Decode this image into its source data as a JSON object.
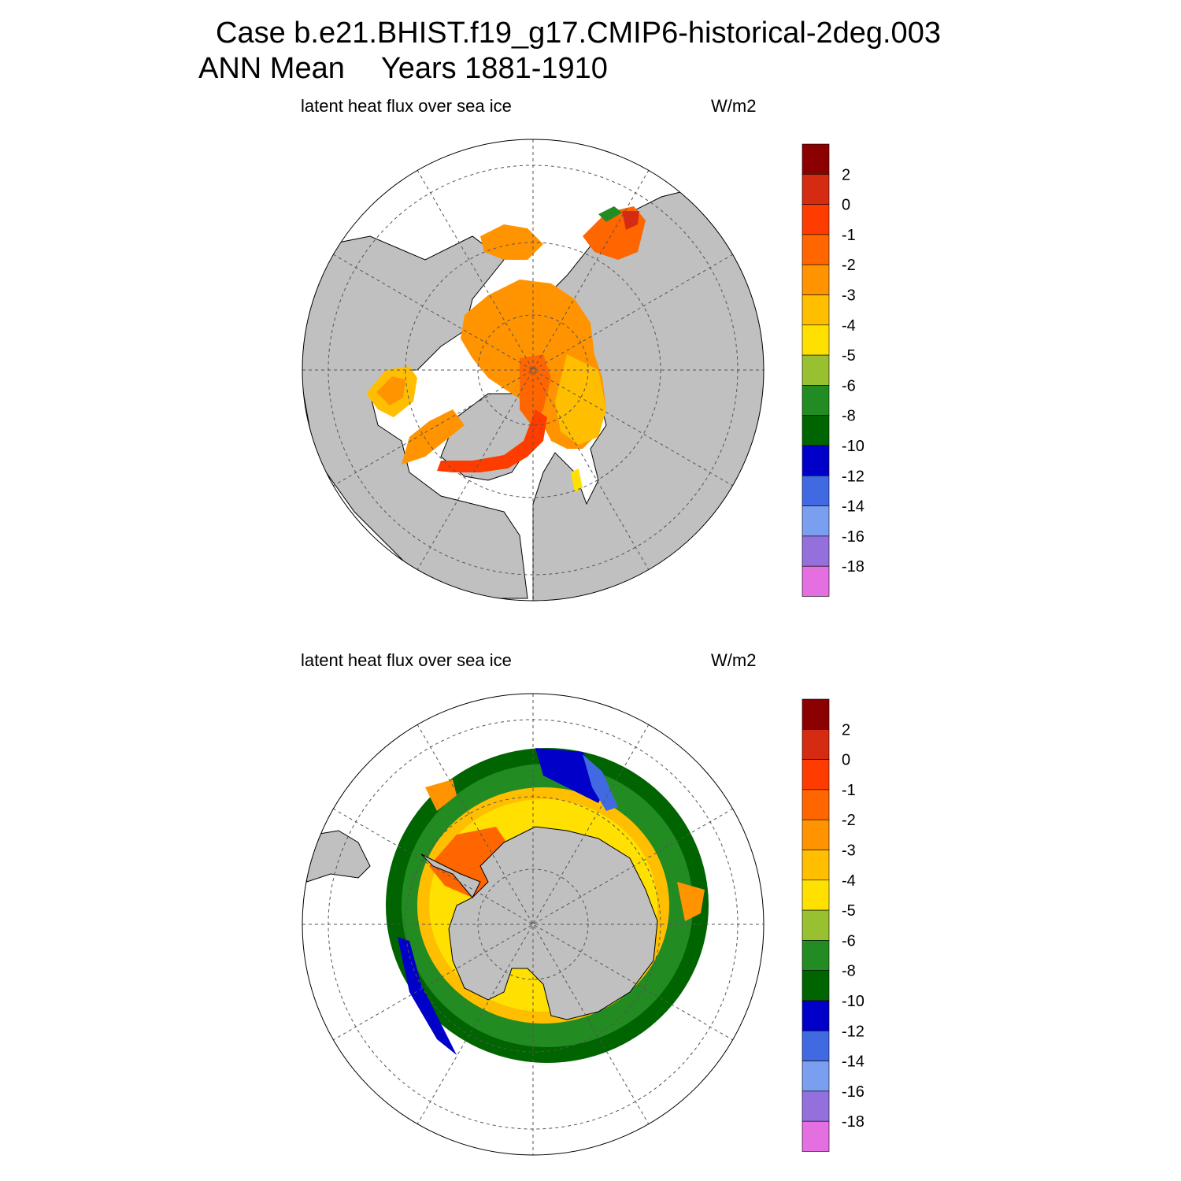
{
  "title": {
    "case": "Case b.e21.BHIST.f19_g17.CMIP6-historical-2deg.003",
    "season": "ANN Mean",
    "years": "Years 1881-1910"
  },
  "panels": [
    {
      "hemisphere": "north",
      "variable": "latent heat flux over sea ice",
      "units": "W/m2"
    },
    {
      "hemisphere": "south",
      "variable": "latent heat flux over sea ice",
      "units": "W/m2"
    }
  ],
  "colorbar": {
    "labels": [
      "2",
      "0",
      "-1",
      "-2",
      "-3",
      "-4",
      "-5",
      "-6",
      "-8",
      "-10",
      "-12",
      "-14",
      "-16",
      "-18"
    ],
    "colors": [
      "#8b0000",
      "#d42b12",
      "#ff3c00",
      "#ff6600",
      "#ff9400",
      "#ffbf00",
      "#ffe000",
      "#99c030",
      "#228b22",
      "#006400",
      "#0000c8",
      "#4169e1",
      "#7b9ff0",
      "#9370db",
      "#e36fe0"
    ]
  },
  "palette": {
    "land": "#c0c0c0",
    "ocean": "#ffffff",
    "grid": "#555555"
  }
}
